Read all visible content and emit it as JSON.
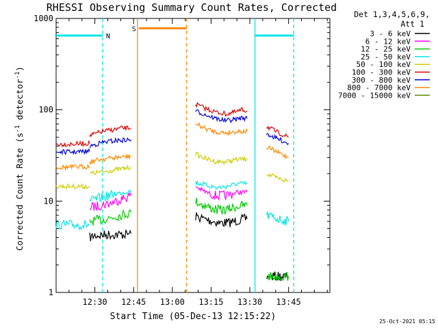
{
  "chart_data": {
    "type": "line",
    "title": "RHESSI Observing Summary Count Rates, Corrected",
    "xlabel": "Start Time (05-Dec-13 12:15:22)",
    "ylabel_main": "Corrected Count Rate (s",
    "ylabel_sup1": "-1",
    "ylabel_mid": " detector",
    "ylabel_sup2": "-1",
    "ylabel_end": ")",
    "yscale": "log",
    "ylim": [
      1,
      1000
    ],
    "xlim_min": [
      0,
      106
    ],
    "x_ticks": [
      {
        "label": "12:30",
        "t": 15
      },
      {
        "label": "12:45",
        "t": 30
      },
      {
        "label": "13:00",
        "t": 45
      },
      {
        "label": "13:15",
        "t": 60
      },
      {
        "label": "13:30",
        "t": 75
      },
      {
        "label": "13:45",
        "t": 90
      }
    ],
    "y_ticks": [
      {
        "label": "1",
        "v": 1
      },
      {
        "label": "10",
        "v": 10
      },
      {
        "label": "100",
        "v": 100
      },
      {
        "label": "1000",
        "v": 1000
      }
    ],
    "legend_header": [
      "Det 1,3,4,5,6,9,",
      "Att 1"
    ],
    "series": [
      {
        "name": "3 - 6 keV",
        "color": "#000000",
        "segments": [
          [
            [
              13,
              4.0
            ],
            [
              15,
              4.2
            ],
            [
              20,
              4.3
            ],
            [
              25,
              4.3
            ],
            [
              29,
              4.4
            ]
          ],
          [
            [
              54,
              6.8
            ],
            [
              58,
              6.3
            ],
            [
              63,
              5.8
            ],
            [
              67,
              5.8
            ],
            [
              72,
              6.3
            ],
            [
              74,
              6.4
            ]
          ],
          [
            [
              81.5,
              1.5
            ],
            [
              85,
              1.5
            ],
            [
              90,
              1.5
            ]
          ]
        ]
      },
      {
        "name": "6 - 12 keV",
        "color": "#ff00ff",
        "segments": [
          [
            [
              13,
              8.5
            ],
            [
              17,
              9.0
            ],
            [
              21,
              9.5
            ],
            [
              25,
              10.5
            ],
            [
              29,
              11.5
            ]
          ],
          [
            [
              54,
              14.5
            ],
            [
              58,
              12.5
            ],
            [
              62,
              11.5
            ],
            [
              66,
              11.5
            ],
            [
              70,
              12.5
            ],
            [
              74,
              12.5
            ]
          ]
        ]
      },
      {
        "name": "12 - 25 keV",
        "color": "#00cc00",
        "segments": [
          [
            [
              13,
              6.0
            ],
            [
              18,
              6.3
            ],
            [
              23,
              6.8
            ],
            [
              29,
              7.5
            ]
          ],
          [
            [
              54,
              10.0
            ],
            [
              58,
              8.8
            ],
            [
              62,
              8.0
            ],
            [
              66,
              8.0
            ],
            [
              70,
              8.8
            ],
            [
              74,
              9.0
            ]
          ],
          [
            [
              81.5,
              1.5
            ],
            [
              85,
              1.5
            ],
            [
              90,
              1.5
            ]
          ]
        ]
      },
      {
        "name": "25 - 50 keV",
        "color": "#00e5e5",
        "segments": [
          [
            [
              0,
              5.5
            ],
            [
              6,
              5.5
            ],
            [
              13,
              5.5
            ]
          ],
          [
            [
              13,
              10.0
            ],
            [
              18,
              11.0
            ],
            [
              23,
              12.0
            ],
            [
              29,
              13.0
            ]
          ],
          [
            [
              54,
              16.0
            ],
            [
              58,
              15.0
            ],
            [
              62,
              14.0
            ],
            [
              66,
              14.5
            ],
            [
              70,
              15.5
            ],
            [
              74,
              15.5
            ]
          ],
          [
            [
              81.5,
              7.0
            ],
            [
              85,
              6.5
            ],
            [
              90,
              6.0
            ]
          ]
        ]
      },
      {
        "name": "50 - 100 keV",
        "color": "#cccc00",
        "segments": [
          [
            [
              0,
              14.5
            ],
            [
              6,
              14.5
            ],
            [
              13,
              14.5
            ]
          ],
          [
            [
              13,
              20.0
            ],
            [
              18,
              21.0
            ],
            [
              23,
              22.0
            ],
            [
              29,
              23.5
            ]
          ],
          [
            [
              54,
              33.0
            ],
            [
              58,
              29.0
            ],
            [
              62,
              27.0
            ],
            [
              66,
              27.0
            ],
            [
              70,
              28.5
            ],
            [
              74,
              29.0
            ]
          ],
          [
            [
              81.5,
              20.0
            ],
            [
              85,
              18.0
            ],
            [
              90,
              16.5
            ]
          ]
        ]
      },
      {
        "name": "100 - 300 keV",
        "color": "#dd0000",
        "segments": [
          [
            [
              0,
              42.0
            ],
            [
              6,
              42.0
            ],
            [
              13,
              43.0
            ]
          ],
          [
            [
              13,
              52.0
            ],
            [
              18,
              58.0
            ],
            [
              23,
              61.0
            ],
            [
              25,
              63.0
            ],
            [
              29,
              63.0
            ]
          ],
          [
            [
              54,
              115.0
            ],
            [
              58,
              103.0
            ],
            [
              62,
              94.0
            ],
            [
              66,
              90.0
            ],
            [
              70,
              95.0
            ],
            [
              72,
              100.0
            ],
            [
              74,
              97.0
            ]
          ],
          [
            [
              81.5,
              66.0
            ],
            [
              85,
              58.0
            ],
            [
              90,
              50.0
            ]
          ]
        ]
      },
      {
        "name": "300 - 800 keV",
        "color": "#0000dd",
        "segments": [
          [
            [
              0,
              34.5
            ],
            [
              6,
              34.5
            ],
            [
              13,
              35.0
            ]
          ],
          [
            [
              13,
              40.0
            ],
            [
              18,
              44.0
            ],
            [
              23,
              46.0
            ],
            [
              29,
              47.0
            ]
          ],
          [
            [
              54,
              97.0
            ],
            [
              58,
              88.0
            ],
            [
              62,
              80.0
            ],
            [
              66,
              76.0
            ],
            [
              70,
              79.0
            ],
            [
              72,
              82.0
            ],
            [
              74,
              80.0
            ]
          ],
          [
            [
              81.5,
              55.0
            ],
            [
              85,
              49.0
            ],
            [
              90,
              43.0
            ]
          ]
        ]
      },
      {
        "name": "800 - 7000 keV",
        "color": "#ff8800",
        "segments": [
          [
            [
              0,
              23.5
            ],
            [
              6,
              23.5
            ],
            [
              13,
              24.0
            ]
          ],
          [
            [
              13,
              27.0
            ],
            [
              18,
              29.0
            ],
            [
              23,
              30.0
            ],
            [
              29,
              31.0
            ]
          ],
          [
            [
              54,
              70.0
            ],
            [
              58,
              62.0
            ],
            [
              62,
              57.0
            ],
            [
              66,
              56.0
            ],
            [
              70,
              58.0
            ],
            [
              74,
              58.0
            ]
          ],
          [
            [
              81.5,
              39.0
            ],
            [
              85,
              35.0
            ],
            [
              90,
              30.0
            ]
          ]
        ]
      },
      {
        "name": "7000 - 15000 keV",
        "color": "#558800",
        "segments": []
      }
    ],
    "annotations": [
      {
        "label": "N",
        "color": "#00e5e5",
        "t_start": 0,
        "t_end": 18,
        "level": 650
      },
      {
        "label": "S",
        "color": "#ff8800",
        "t_start": 32,
        "t_end": 50.5,
        "level": 780
      },
      {
        "label": "",
        "color": "#00e5e5",
        "t_start": 77,
        "t_end": 92,
        "level": 650
      }
    ],
    "vlines": [
      {
        "t": 18,
        "color": "#00e5e5",
        "style": "dash"
      },
      {
        "t": 31.5,
        "color": "#ff8800",
        "style": "solid"
      },
      {
        "t": 50.5,
        "color": "#ff8800",
        "style": "dash"
      },
      {
        "t": 77,
        "color": "#00e5e5",
        "style": "solid"
      },
      {
        "t": 92,
        "color": "#00e5e5",
        "style": "dash"
      }
    ],
    "timestamp": "25-Oct-2021 05:15"
  }
}
